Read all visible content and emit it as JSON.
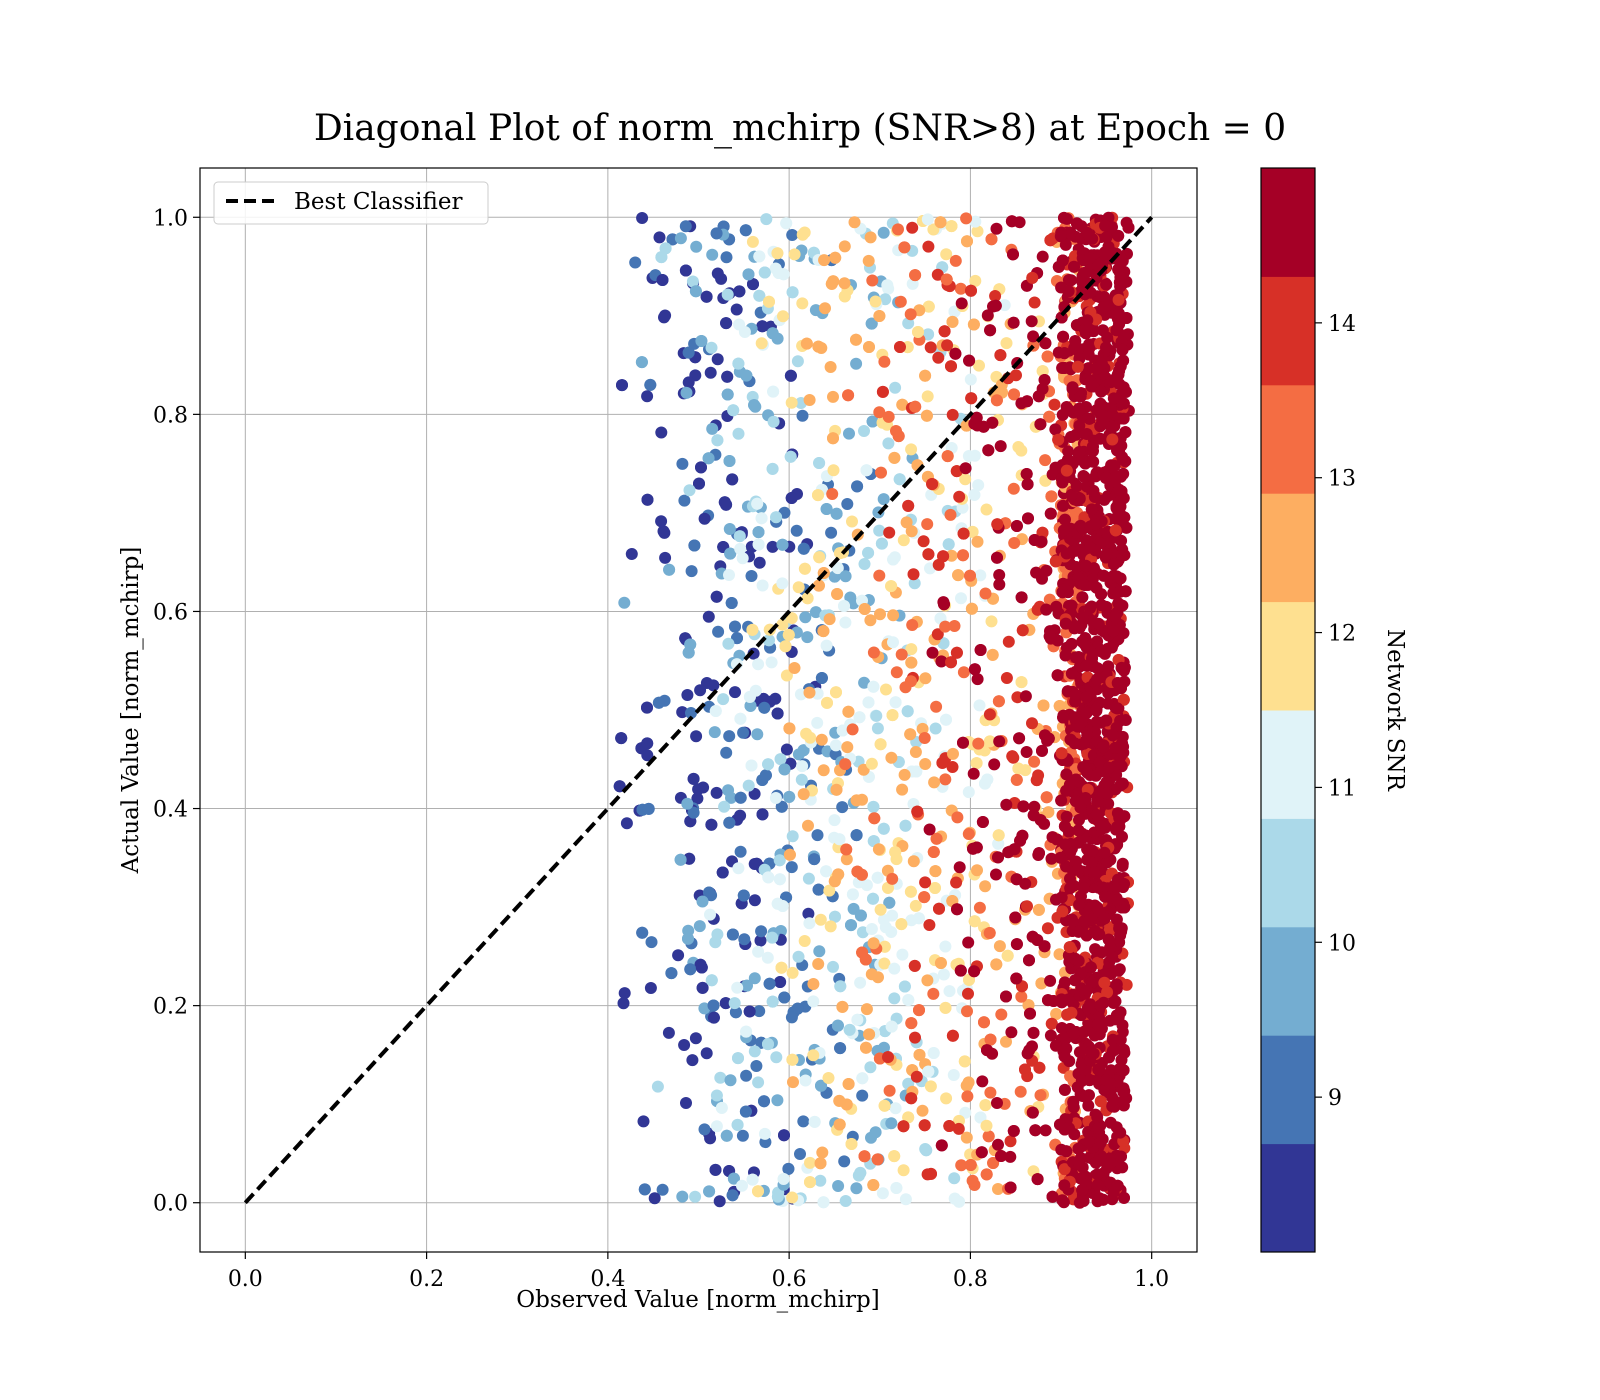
{
  "chart_data": {
    "type": "scatter",
    "title": "Diagonal Plot of norm_mchirp (SNR>8) at Epoch = 0",
    "xlabel": "Observed Value [norm_mchirp]",
    "ylabel": "Actual Value [norm_mchirp]",
    "xlim": [
      -0.05,
      1.05
    ],
    "ylim": [
      -0.05,
      1.05
    ],
    "x_ticks": [
      "0.0",
      "0.2",
      "0.4",
      "0.6",
      "0.8",
      "1.0"
    ],
    "y_ticks": [
      "0.0",
      "0.2",
      "0.4",
      "0.6",
      "0.8",
      "1.0"
    ],
    "x_tick_values": [
      0.0,
      0.2,
      0.4,
      0.6,
      0.8,
      1.0
    ],
    "y_tick_values": [
      0.0,
      0.2,
      0.4,
      0.6,
      0.8,
      1.0
    ],
    "grid": true,
    "legend": {
      "placement": "top-left",
      "entries": [
        {
          "label": "Best Classifier",
          "style": "dashed",
          "color": "#000000"
        }
      ]
    },
    "reference_line": {
      "name": "Best Classifier",
      "x": [
        0.0,
        1.0
      ],
      "y": [
        0.0,
        1.0
      ]
    },
    "scatter_pattern": {
      "x_min": 0.41,
      "x_max": 0.975,
      "y_min": 0.0,
      "y_max": 1.0,
      "dense_column_x": [
        0.9,
        0.97
      ],
      "note_relationship": "color increases with observed value"
    },
    "colorbar": {
      "label": "Network SNR",
      "range": [
        8,
        15
      ],
      "tick_values": [
        9,
        10,
        11,
        12,
        13,
        14
      ],
      "ticks": [
        "9",
        "10",
        "11",
        "12",
        "13",
        "14"
      ],
      "colors": [
        "#313695",
        "#4575b4",
        "#74add1",
        "#abd9e9",
        "#e0f3f8",
        "#fee090",
        "#fdae61",
        "#f46d43",
        "#d73027",
        "#a50026"
      ]
    }
  }
}
